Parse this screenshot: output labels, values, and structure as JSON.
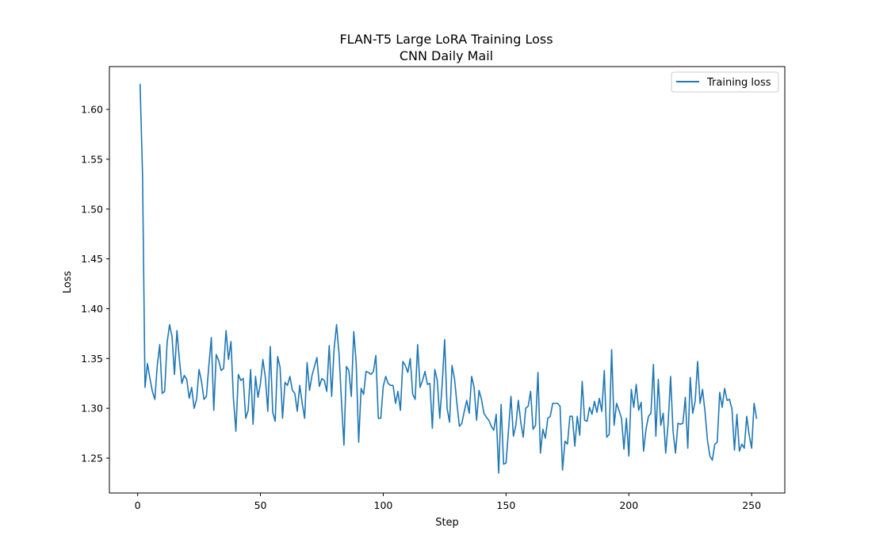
{
  "chart_data": {
    "type": "line",
    "title": "FLAN-T5 Large LoRA Training Loss",
    "subtitle": "CNN Daily Mail",
    "xlabel": "Step",
    "ylabel": "Loss",
    "xlim": [
      -11.5,
      263.5
    ],
    "ylim": [
      1.215,
      1.643
    ],
    "xticks": [
      0,
      50,
      100,
      150,
      200,
      250
    ],
    "yticks": [
      1.25,
      1.3,
      1.35,
      1.4,
      1.45,
      1.5,
      1.55,
      1.6
    ],
    "ytick_labels": [
      "1.25",
      "1.30",
      "1.35",
      "1.40",
      "1.45",
      "1.50",
      "1.55",
      "1.60"
    ],
    "grid": false,
    "legend_position": "upper right",
    "colors": {
      "series": "#1f77b4"
    },
    "series": [
      {
        "name": "Training loss",
        "x_start": 1,
        "x_step": 1,
        "values": [
          1.625,
          1.534,
          1.321,
          1.345,
          1.33,
          1.317,
          1.309,
          1.343,
          1.364,
          1.315,
          1.317,
          1.366,
          1.384,
          1.372,
          1.334,
          1.378,
          1.349,
          1.325,
          1.333,
          1.329,
          1.31,
          1.321,
          1.3,
          1.309,
          1.339,
          1.327,
          1.309,
          1.312,
          1.343,
          1.371,
          1.298,
          1.354,
          1.348,
          1.338,
          1.34,
          1.378,
          1.349,
          1.367,
          1.31,
          1.277,
          1.334,
          1.328,
          1.33,
          1.29,
          1.298,
          1.339,
          1.284,
          1.332,
          1.311,
          1.325,
          1.349,
          1.331,
          1.297,
          1.362,
          1.296,
          1.287,
          1.352,
          1.341,
          1.29,
          1.326,
          1.323,
          1.332,
          1.318,
          1.315,
          1.297,
          1.323,
          1.305,
          1.29,
          1.346,
          1.318,
          1.333,
          1.342,
          1.351,
          1.322,
          1.33,
          1.328,
          1.317,
          1.363,
          1.312,
          1.36,
          1.384,
          1.355,
          1.307,
          1.263,
          1.342,
          1.338,
          1.312,
          1.377,
          1.345,
          1.266,
          1.32,
          1.314,
          1.337,
          1.336,
          1.334,
          1.337,
          1.353,
          1.29,
          1.29,
          1.322,
          1.332,
          1.325,
          1.323,
          1.323,
          1.305,
          1.317,
          1.298,
          1.347,
          1.343,
          1.336,
          1.35,
          1.314,
          1.309,
          1.364,
          1.321,
          1.328,
          1.337,
          1.324,
          1.325,
          1.28,
          1.339,
          1.328,
          1.29,
          1.324,
          1.369,
          1.3,
          1.286,
          1.343,
          1.33,
          1.305,
          1.282,
          1.285,
          1.297,
          1.308,
          1.295,
          1.332,
          1.321,
          1.288,
          1.318,
          1.309,
          1.295,
          1.291,
          1.288,
          1.282,
          1.278,
          1.294,
          1.235,
          1.304,
          1.244,
          1.245,
          1.278,
          1.312,
          1.272,
          1.283,
          1.308,
          1.286,
          1.271,
          1.3,
          1.302,
          1.317,
          1.279,
          1.283,
          1.336,
          1.255,
          1.279,
          1.27,
          1.29,
          1.292,
          1.305,
          1.305,
          1.305,
          1.302,
          1.238,
          1.267,
          1.264,
          1.292,
          1.292,
          1.262,
          1.292,
          1.273,
          1.327,
          1.288,
          1.287,
          1.301,
          1.294,
          1.307,
          1.296,
          1.31,
          1.297,
          1.338,
          1.271,
          1.274,
          1.359,
          1.283,
          1.305,
          1.298,
          1.29,
          1.259,
          1.29,
          1.252,
          1.319,
          1.301,
          1.324,
          1.298,
          1.306,
          1.257,
          1.279,
          1.292,
          1.295,
          1.344,
          1.272,
          1.329,
          1.283,
          1.295,
          1.255,
          1.285,
          1.332,
          1.277,
          1.255,
          1.285,
          1.284,
          1.285,
          1.311,
          1.26,
          1.331,
          1.295,
          1.307,
          1.347,
          1.305,
          1.319,
          1.297,
          1.268,
          1.252,
          1.248,
          1.264,
          1.266,
          1.316,
          1.301,
          1.32,
          1.308,
          1.309,
          1.299,
          1.258,
          1.294,
          1.257,
          1.264,
          1.26,
          1.292,
          1.273,
          1.26,
          1.305,
          1.29
        ]
      }
    ]
  }
}
